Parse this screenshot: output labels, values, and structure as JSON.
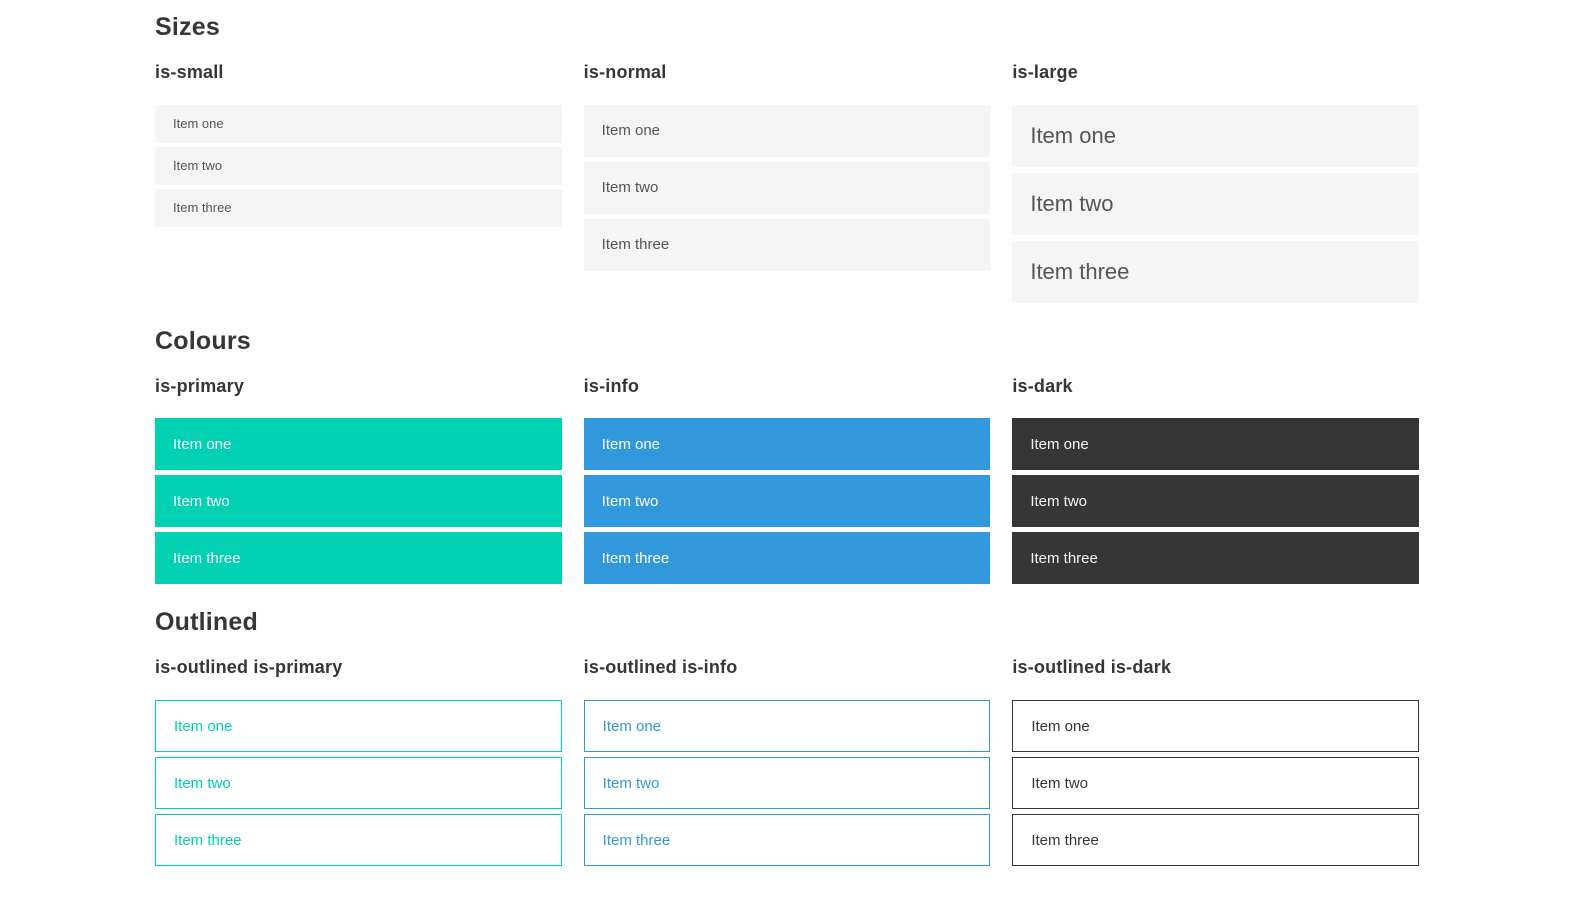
{
  "colors": {
    "primary": "#00d1b2",
    "info": "#3298dc",
    "dark": "#363636",
    "item_background": "#f5f5f5",
    "item_text": "#555555",
    "heading_text": "#363636",
    "filled_text": "#ffffff"
  },
  "sections": [
    {
      "title": "Sizes",
      "columns": [
        {
          "heading": "is-small",
          "items": [
            "Item one",
            "Item two",
            "Item three"
          ]
        },
        {
          "heading": "is-normal",
          "items": [
            "Item one",
            "Item two",
            "Item three"
          ]
        },
        {
          "heading": "is-large",
          "items": [
            "Item one",
            "Item two",
            "Item three"
          ]
        }
      ]
    },
    {
      "title": "Colours",
      "columns": [
        {
          "heading": "is-primary",
          "items": [
            "Item one",
            "Item two",
            "Item three"
          ]
        },
        {
          "heading": "is-info",
          "items": [
            "Item one",
            "Item two",
            "Item three"
          ]
        },
        {
          "heading": "is-dark",
          "items": [
            "Item one",
            "Item two",
            "Item three"
          ]
        }
      ]
    },
    {
      "title": "Outlined",
      "columns": [
        {
          "heading": "is-outlined is-primary",
          "items": [
            "Item one",
            "Item two",
            "Item three"
          ]
        },
        {
          "heading": "is-outlined is-info",
          "items": [
            "Item one",
            "Item two",
            "Item three"
          ]
        },
        {
          "heading": "is-outlined is-dark",
          "items": [
            "Item one",
            "Item two",
            "Item three"
          ]
        }
      ]
    }
  ]
}
